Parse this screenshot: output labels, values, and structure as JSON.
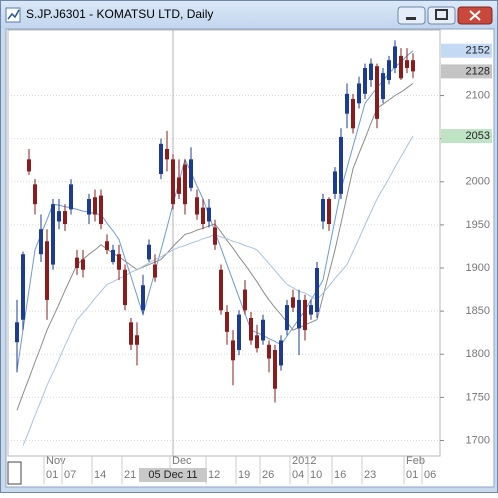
{
  "chart_data": {
    "type": "candlestick",
    "title": "S.JP.J6301 - KOMATSU LTD, Daily",
    "categories": [
      null,
      null,
      null,
      null,
      null,
      "01",
      null,
      null,
      "07",
      null,
      null,
      null,
      null,
      "14",
      null,
      null,
      null,
      null,
      "21",
      null,
      null,
      null,
      null,
      null,
      null,
      null,
      null,
      null,
      null,
      null,
      null,
      null,
      "12",
      null,
      null,
      null,
      null,
      "19",
      null,
      null,
      null,
      "26",
      null,
      null,
      null,
      null,
      "04",
      null,
      null,
      "10",
      null,
      null,
      null,
      "16",
      null,
      null,
      null,
      null,
      "23",
      null,
      null,
      null,
      null,
      null,
      null,
      "01",
      null,
      null,
      "06"
    ],
    "months": [
      null,
      null,
      null,
      null,
      null,
      "Nov",
      null,
      null,
      null,
      null,
      null,
      null,
      null,
      null,
      null,
      null,
      null,
      null,
      null,
      null,
      null,
      null,
      null,
      null,
      null,
      null,
      "Dec",
      null,
      null,
      null,
      null,
      null,
      null,
      null,
      null,
      null,
      null,
      null,
      null,
      null,
      null,
      null,
      null,
      null,
      null,
      null,
      "2012",
      null,
      null,
      null,
      null,
      null,
      null,
      null,
      null,
      null,
      null,
      null,
      null,
      null,
      null,
      null,
      null,
      null,
      null,
      "Feb",
      null,
      null,
      null
    ],
    "open": [
      1814,
      1840,
      2026,
      1997,
      1916,
      1931,
      1904,
      1954,
      1966,
      1968,
      1912,
      1910,
      1962,
      1982,
      1984,
      1931,
      1907,
      1916,
      1898,
      1837,
      1822,
      1851,
      1910,
      1904,
      2009,
      2038,
      2026,
      2005,
      2020,
      1993,
      1982,
      1970,
      1954,
      1947,
      1898,
      1849,
      1816,
      1805,
      1875,
      1842,
      1822,
      1816,
      1811,
      1805,
      1787,
      1828,
      1866,
      1830,
      1863,
      1846,
      1849,
      1954,
      1980,
      1986,
      1986,
      2079,
      2096,
      2091,
      2102,
      2118,
      2134,
      2096,
      2118,
      2132,
      2146,
      2141,
      2141,
      null,
      null
    ],
    "high": [
      1863,
      1919,
      2038,
      2003,
      1962,
      1945,
      1980,
      1980,
      1974,
      2003,
      1921,
      1921,
      1986,
      1991,
      1991,
      1939,
      1927,
      1927,
      1904,
      1842,
      1837,
      1892,
      1933,
      1916,
      2050,
      2059,
      2032,
      2026,
      2026,
      2040,
      1991,
      1980,
      1980,
      1956,
      1904,
      1857,
      1828,
      1851,
      1886,
      1849,
      1834,
      1846,
      1816,
      1811,
      1822,
      1863,
      1875,
      1875,
      1869,
      1863,
      1907,
      1986,
      1982,
      2017,
      2062,
      2114,
      2102,
      2122,
      2137,
      2143,
      2137,
      2132,
      2146,
      2164,
      2155,
      2155,
      2149,
      null,
      null
    ],
    "low": [
      1779,
      1828,
      2008,
      1962,
      1907,
      1840,
      1898,
      1945,
      1943,
      1962,
      1892,
      1889,
      1951,
      1954,
      1945,
      1916,
      1904,
      1886,
      1851,
      1805,
      1787,
      1846,
      1907,
      1884,
      2003,
      2012,
      1968,
      1980,
      1962,
      1989,
      1956,
      1945,
      1947,
      1921,
      1846,
      1811,
      1764,
      1799,
      1846,
      1811,
      1802,
      1811,
      1779,
      1744,
      1781,
      1822,
      1849,
      1799,
      1816,
      1840,
      1842,
      1945,
      1943,
      1980,
      1980,
      2062,
      2056,
      2085,
      2096,
      2110,
      2062,
      2091,
      2113,
      2126,
      2118,
      2126,
      2120,
      null,
      null
    ],
    "close": [
      1837,
      1916,
      2012,
      1974,
      1945,
      1863,
      1974,
      1966,
      1951,
      1997,
      1900,
      1898,
      1980,
      1962,
      1951,
      1921,
      1921,
      1898,
      1857,
      1811,
      1811,
      1880,
      1927,
      1889,
      2044,
      2026,
      1974,
      1986,
      1974,
      2026,
      1962,
      1951,
      1970,
      1927,
      1851,
      1826,
      1793,
      1846,
      1851,
      1816,
      1807,
      1840,
      1795,
      1760,
      1816,
      1857,
      1854,
      1863,
      1828,
      1857,
      1900,
      1980,
      1951,
      2012,
      2052,
      2102,
      2062,
      2114,
      2132,
      2137,
      2073,
      2126,
      2141,
      2157,
      2120,
      2132,
      2128,
      null,
      null
    ],
    "up_color": "#1c3c94",
    "down_color": "#8a1c1c",
    "overlays": [
      {
        "color": "#6f9ad6",
        "values": [
          1781,
          1828,
          1874,
          1921,
          1939,
          1956,
          1974,
          1973,
          1971,
          1970,
          1968,
          1966,
          1965,
          1963,
          1962,
          1952,
          1943,
          1933,
          1911,
          1890,
          1868,
          1846,
          1871,
          1896,
          1921,
          1947,
          1974,
          2000,
          2026,
          2011,
          1995,
          1980,
          1961,
          1942,
          1923,
          1904,
          1885,
          1866,
          1847,
          1828,
          1825,
          1822,
          1818,
          1815,
          1811,
          1821,
          1831,
          1841,
          1851,
          1863,
          1874,
          1886,
          1921,
          1956,
          1991,
          2016,
          2041,
          2066,
          2091,
          2100,
          2109,
          2117,
          2126,
          2133,
          2139,
          2146,
          2152,
          null,
          null
        ]
      },
      {
        "color": "#8c8c8c",
        "values": [
          1735,
          1754,
          1772,
          1791,
          1809,
          1828,
          1843,
          1858,
          1874,
          1889,
          1904,
          1910,
          1916,
          1921,
          1927,
          1922,
          1917,
          1913,
          1908,
          1903,
          1898,
          1901,
          1904,
          1907,
          1910,
          1917,
          1925,
          1932,
          1939,
          1941,
          1944,
          1946,
          1949,
          1951,
          1942,
          1932,
          1923,
          1913,
          1904,
          1894,
          1884,
          1873,
          1863,
          1854,
          1846,
          1837,
          1828,
          1831,
          1834,
          1837,
          1840,
          1867,
          1894,
          1921,
          1952,
          1984,
          2015,
          2033,
          2050,
          2068,
          2085,
          2090,
          2095,
          2100,
          2104,
          2109,
          2114,
          null,
          null
        ]
      },
      {
        "color": "#a9c3dd",
        "values": [
          null,
          1694,
          1711,
          1729,
          1746,
          1764,
          1779,
          1794,
          1810,
          1825,
          1840,
          1848,
          1856,
          1865,
          1873,
          1881,
          1884,
          1888,
          1891,
          1895,
          1898,
          1902,
          1906,
          1910,
          1913,
          1917,
          1921,
          1924,
          1926,
          1929,
          1931,
          1934,
          1936,
          1939,
          1936,
          1934,
          1931,
          1929,
          1926,
          1924,
          1921,
          1913,
          1905,
          1897,
          1889,
          1881,
          1877,
          1873,
          1871,
          1867,
          1863,
          1871,
          1879,
          1888,
          1896,
          1904,
          1919,
          1934,
          1950,
          1965,
          1980,
          1992,
          2004,
          2017,
          2029,
          2041,
          2053,
          null,
          null
        ]
      }
    ],
    "ylim": [
      1682,
      2176
    ],
    "yticks": [
      1700,
      1750,
      1800,
      1850,
      1900,
      1950,
      2000,
      2050,
      2100
    ],
    "grid": true,
    "price_labels": [
      {
        "value": 2152,
        "color": "#c4d9f4"
      },
      {
        "value": 2128,
        "color": "#c4c4c4"
      },
      {
        "value": 2053,
        "color": "#bfe3c4"
      }
    ],
    "crosshair_label": "05 Dec 11"
  }
}
